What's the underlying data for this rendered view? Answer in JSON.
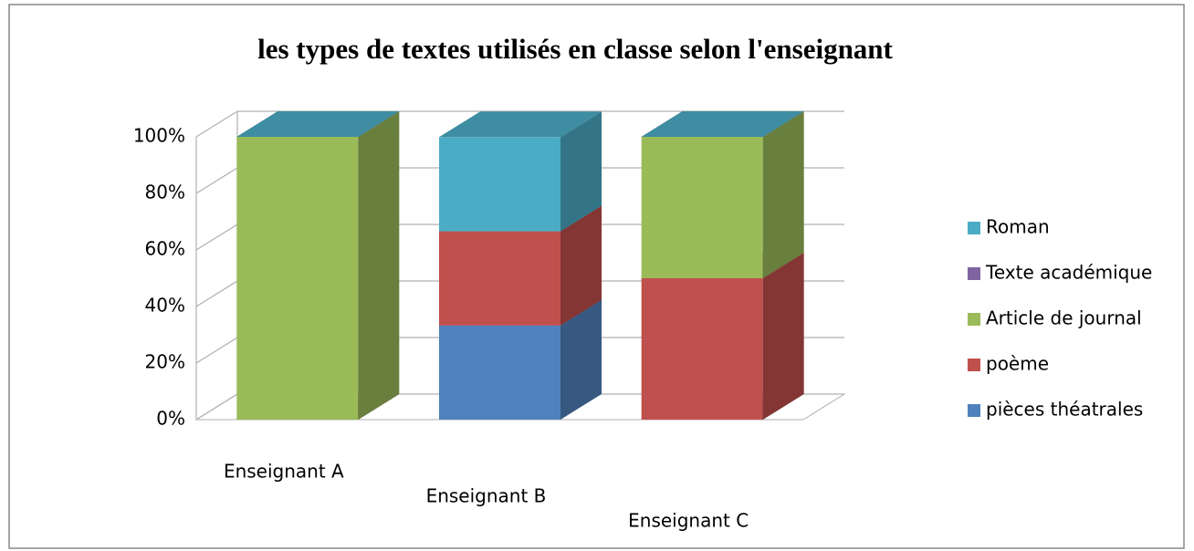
{
  "chart_data": {
    "type": "bar3d_stacked",
    "title": "les types de textes utilisés en classe selon l'enseignant",
    "categories": [
      "Enseignant A",
      "Enseignant B",
      "Enseignant C"
    ],
    "series": [
      {
        "name": "pièces théatrales",
        "color": "#4f81bd",
        "values": [
          0,
          33.3,
          0
        ]
      },
      {
        "name": "poème",
        "color": "#c0504d",
        "values": [
          0,
          33.3,
          50
        ]
      },
      {
        "name": "Article de journal",
        "color": "#9bbb59",
        "values": [
          100,
          0,
          50
        ]
      },
      {
        "name": "Texte académique",
        "color": "#8064a2",
        "values": [
          0,
          0,
          0
        ]
      },
      {
        "name": "Roman",
        "color": "#4bacc6",
        "values": [
          0,
          33.3,
          0
        ]
      }
    ],
    "ylim": [
      0,
      100
    ],
    "yticks": [
      {
        "value": 0,
        "label": "0%"
      },
      {
        "value": 20,
        "label": "20%"
      },
      {
        "value": 40,
        "label": "40%"
      },
      {
        "value": 60,
        "label": "60%"
      },
      {
        "value": 80,
        "label": "80%"
      },
      {
        "value": 100,
        "label": "100%"
      }
    ],
    "grid": true,
    "legend": "right"
  }
}
